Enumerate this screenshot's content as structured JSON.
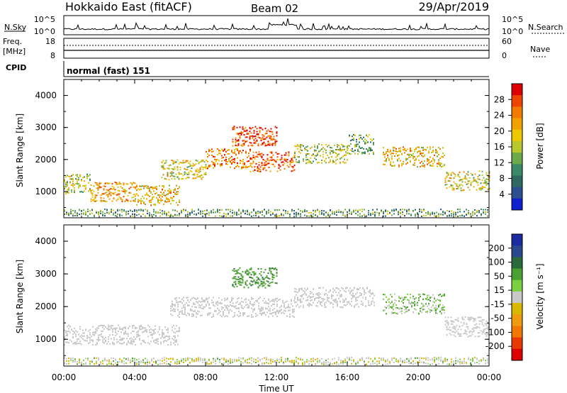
{
  "header": {
    "station": "Hokkaido East (fitACF)",
    "beam": "Beam 02",
    "date": "29/Apr/2019"
  },
  "strips": {
    "nsky_label": "N.Sky",
    "nsky_ticks": [
      "10^5",
      "10^0"
    ],
    "nsearch_label": "N.Search",
    "nsearch_ticks": [
      "10^5",
      "10^0"
    ],
    "freq_label": [
      "Freq.",
      "[MHz]"
    ],
    "freq_ticks": [
      "18",
      "8"
    ],
    "nave_label": "Nave",
    "nave_ticks": [
      "60",
      "0"
    ],
    "cpid_label": "CPID",
    "cpid_value": "normal (fast) 151"
  },
  "xaxis": {
    "label": "Time UT",
    "ticks": [
      "00:00",
      "04:00",
      "08:00",
      "12:00",
      "16:00",
      "20:00",
      "00:00"
    ]
  },
  "panels": {
    "power": {
      "ylabel": "Slant Range [km]",
      "yticks": [
        "1000",
        "2000",
        "3000",
        "4000"
      ],
      "colorbar_label": "Power [dB]",
      "colorbar_ticks": [
        "28",
        "24",
        "20",
        "16",
        "12",
        "8",
        "4"
      ],
      "colors": [
        "#dd0000",
        "#ee4400",
        "#f27a00",
        "#f2a200",
        "#ecc800",
        "#b8c82a",
        "#6aaa48",
        "#3a8a68",
        "#306860",
        "#2a5090",
        "#1020d0"
      ]
    },
    "velocity": {
      "ylabel": "Slant Range [km]",
      "yticks": [
        "1000",
        "2000",
        "3000",
        "4000"
      ],
      "colorbar_label": "Velocity [m s⁻¹]",
      "colorbar_ticks": [
        "200",
        "100",
        "50",
        "15",
        "-15",
        "-50",
        "-100",
        "-200"
      ],
      "colors": [
        "#1a2aa0",
        "#2a4890",
        "#2a6a3a",
        "#4aa030",
        "#7ad040",
        "#c8c8c8",
        "#d8b800",
        "#f09a10",
        "#f07800",
        "#e83a00",
        "#dd0000"
      ]
    }
  },
  "chart_data": [
    {
      "type": "heatmap",
      "title": "Power",
      "x": {
        "label": "Time UT",
        "range": [
          "00:00",
          "24:00"
        ]
      },
      "y": {
        "label": "Slant Range [km]",
        "range": [
          180,
          4500
        ]
      },
      "colorscale": {
        "label": "Power [dB]",
        "range": [
          0,
          32
        ]
      },
      "echo_bands": [
        {
          "t_start": 0.0,
          "t_end": 1.5,
          "r_center": 1250,
          "power": 16
        },
        {
          "t_start": 1.5,
          "t_end": 4.0,
          "r_center": 1000,
          "power": 22
        },
        {
          "t_start": 4.0,
          "t_end": 6.5,
          "r_center": 900,
          "power": 20
        },
        {
          "t_start": 5.5,
          "t_end": 8.0,
          "r_center": 1700,
          "power": 18
        },
        {
          "t_start": 8.0,
          "t_end": 10.5,
          "r_center": 2050,
          "power": 24
        },
        {
          "t_start": 9.5,
          "t_end": 12.0,
          "r_center": 2750,
          "power": 28
        },
        {
          "t_start": 10.5,
          "t_end": 13.0,
          "r_center": 1950,
          "power": 26
        },
        {
          "t_start": 13.0,
          "t_end": 16.0,
          "r_center": 2200,
          "power": 16
        },
        {
          "t_start": 16.0,
          "t_end": 17.5,
          "r_center": 2500,
          "power": 12
        },
        {
          "t_start": 18.0,
          "t_end": 21.5,
          "r_center": 2100,
          "power": 20
        },
        {
          "t_start": 21.5,
          "t_end": 24.0,
          "r_center": 1350,
          "power": 18
        }
      ]
    },
    {
      "type": "heatmap",
      "title": "Velocity",
      "x": {
        "label": "Time UT",
        "range": [
          "00:00",
          "24:00"
        ]
      },
      "y": {
        "label": "Slant Range [km]",
        "range": [
          180,
          4500
        ]
      },
      "colorscale": {
        "label": "Velocity [m s⁻¹]",
        "range": [
          -250,
          250
        ]
      },
      "echo_bands": [
        {
          "t_start": 0.0,
          "t_end": 6.5,
          "r_center": 1150,
          "velocity": 0
        },
        {
          "t_start": 6.0,
          "t_end": 13.0,
          "r_center": 2000,
          "velocity": 0
        },
        {
          "t_start": 9.5,
          "t_end": 12.0,
          "r_center": 2900,
          "velocity": 40
        },
        {
          "t_start": 13.0,
          "t_end": 17.5,
          "r_center": 2300,
          "velocity": 0
        },
        {
          "t_start": 18.0,
          "t_end": 21.5,
          "r_center": 2100,
          "velocity": 20
        },
        {
          "t_start": 21.5,
          "t_end": 24.0,
          "r_center": 1400,
          "velocity": 0
        }
      ]
    }
  ]
}
